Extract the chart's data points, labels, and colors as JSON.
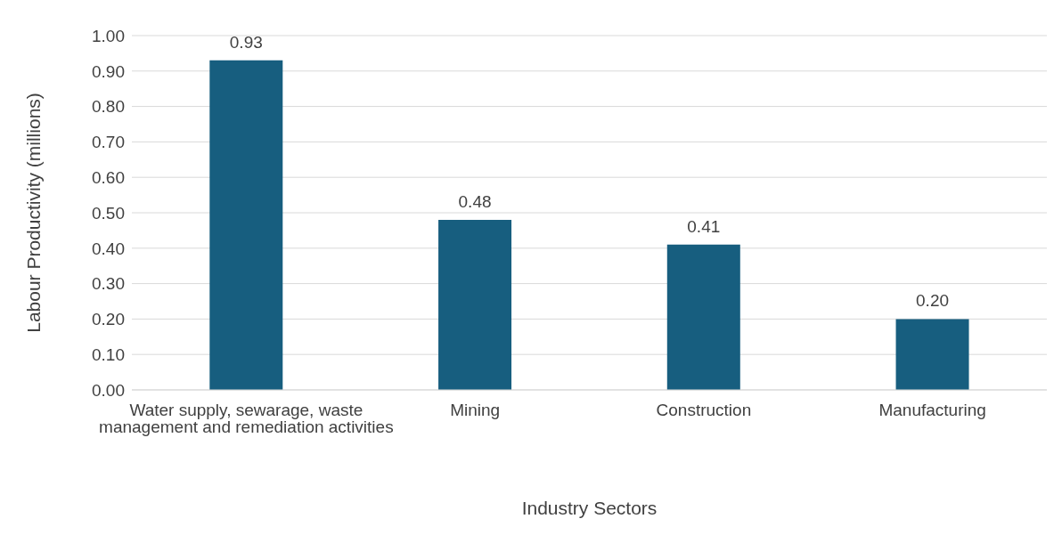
{
  "chart_data": {
    "type": "bar",
    "xlabel": "Industry Sectors",
    "ylabel": "Labour Productivity (millions)",
    "categories": [
      "Water supply, sewarage, waste management and remediation activities",
      "Mining",
      "Construction",
      "Manufacturing"
    ],
    "values": [
      0.93,
      0.48,
      0.41,
      0.2
    ],
    "value_labels": [
      "0.93",
      "0.48",
      "0.41",
      "0.20"
    ],
    "color": "#175e7f",
    "ylim": [
      0,
      1
    ],
    "yticks": [
      {
        "value": 0,
        "label": "0.00"
      },
      {
        "value": 0.1,
        "label": "0.10"
      },
      {
        "value": 0.2,
        "label": "0.20"
      },
      {
        "value": 0.3,
        "label": "0.30"
      },
      {
        "value": 0.4,
        "label": "0.40"
      },
      {
        "value": 0.5,
        "label": "0.50"
      },
      {
        "value": 0.6,
        "label": "0.60"
      },
      {
        "value": 0.7,
        "label": "0.70"
      },
      {
        "value": 0.8,
        "label": "0.80"
      },
      {
        "value": 0.9,
        "label": "0.90"
      },
      {
        "value": 1,
        "label": "1.00"
      }
    ],
    "grid": "y"
  }
}
